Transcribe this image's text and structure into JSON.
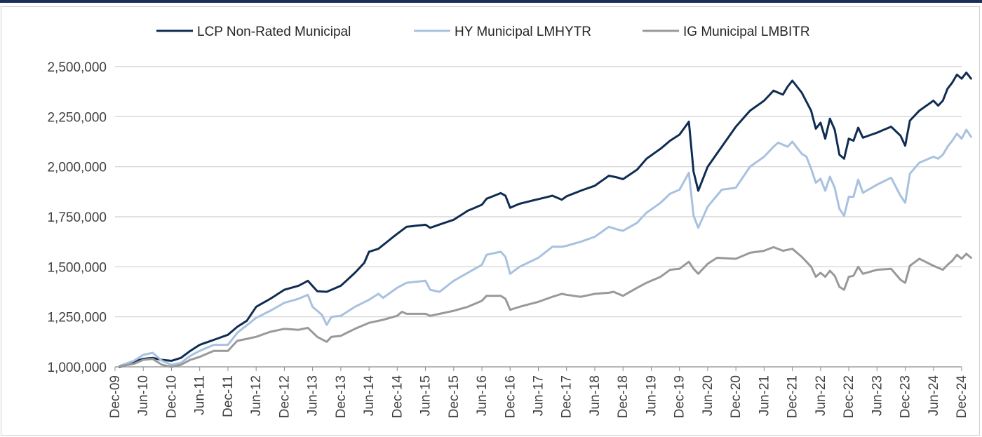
{
  "chart_data": {
    "type": "line",
    "title": "",
    "xlabel": "",
    "ylabel": "",
    "ylim": [
      1000000,
      2500000
    ],
    "y_ticks": [
      1000000,
      1250000,
      1500000,
      1750000,
      2000000,
      2250000,
      2500000
    ],
    "y_tick_labels": [
      "1,000,000",
      "1,250,000",
      "1,500,000",
      "1,750,000",
      "2,000,000",
      "2,250,000",
      "2,500,000"
    ],
    "x_tick_labels": [
      "Dec-09",
      "Jun-10",
      "Dec-10",
      "Jun-11",
      "Dec-11",
      "Jun-12",
      "Dec-12",
      "Jun-13",
      "Dec-13",
      "Jun-14",
      "Dec-14",
      "Jun-15",
      "Dec-15",
      "Jun-16",
      "Dec-16",
      "Jun-17",
      "Dec-17",
      "Jun-18",
      "Dec-18",
      "Jun-19",
      "Dec-19",
      "Jun-20",
      "Dec-20",
      "Jun-21",
      "Dec-21",
      "Jun-22",
      "Dec-22",
      "Jun-23",
      "Dec-23",
      "Jun-24",
      "Dec-24"
    ],
    "x_start": "Jan-10",
    "x_end": "Dec-24",
    "legend_position": "top",
    "grid": "horizontal",
    "series": [
      {
        "name": "LCP Non-Rated Municipal",
        "color": "#0f2d52",
        "anchors": [
          [
            "Jan-10",
            1000000
          ],
          [
            "Apr-10",
            1025000
          ],
          [
            "Jun-10",
            1040000
          ],
          [
            "Aug-10",
            1045000
          ],
          [
            "Oct-10",
            1035000
          ],
          [
            "Dec-10",
            1030000
          ],
          [
            "Feb-11",
            1045000
          ],
          [
            "Apr-11",
            1080000
          ],
          [
            "Jun-11",
            1110000
          ],
          [
            "Dec-11",
            1160000
          ],
          [
            "Feb-12",
            1200000
          ],
          [
            "Apr-12",
            1230000
          ],
          [
            "Jun-12",
            1300000
          ],
          [
            "Sep-12",
            1340000
          ],
          [
            "Dec-12",
            1385000
          ],
          [
            "Mar-13",
            1405000
          ],
          [
            "May-13",
            1430000
          ],
          [
            "Jul-13",
            1378000
          ],
          [
            "Sep-13",
            1375000
          ],
          [
            "Dec-13",
            1405000
          ],
          [
            "Mar-14",
            1470000
          ],
          [
            "May-14",
            1520000
          ],
          [
            "Jun-14",
            1575000
          ],
          [
            "Aug-14",
            1590000
          ],
          [
            "Dec-14",
            1665000
          ],
          [
            "Feb-15",
            1700000
          ],
          [
            "Jun-15",
            1710000
          ],
          [
            "Jul-15",
            1695000
          ],
          [
            "Dec-15",
            1735000
          ],
          [
            "Mar-16",
            1780000
          ],
          [
            "Jun-16",
            1810000
          ],
          [
            "Jul-16",
            1840000
          ],
          [
            "Oct-16",
            1868000
          ],
          [
            "Nov-16",
            1855000
          ],
          [
            "Dec-16",
            1795000
          ],
          [
            "Feb-17",
            1815000
          ],
          [
            "Jun-17",
            1838000
          ],
          [
            "Sep-17",
            1855000
          ],
          [
            "Nov-17",
            1835000
          ],
          [
            "Dec-17",
            1852000
          ],
          [
            "Mar-18",
            1880000
          ],
          [
            "Jun-18",
            1905000
          ],
          [
            "Sep-18",
            1955000
          ],
          [
            "Nov-18",
            1945000
          ],
          [
            "Dec-18",
            1938000
          ],
          [
            "Mar-19",
            1985000
          ],
          [
            "May-19",
            2040000
          ],
          [
            "Aug-19",
            2090000
          ],
          [
            "Oct-19",
            2130000
          ],
          [
            "Dec-19",
            2160000
          ],
          [
            "Feb-20",
            2225000
          ],
          [
            "Mar-20",
            1975000
          ],
          [
            "Apr-20",
            1880000
          ],
          [
            "Jun-20",
            2000000
          ],
          [
            "Sep-20",
            2100000
          ],
          [
            "Dec-20",
            2200000
          ],
          [
            "Mar-21",
            2280000
          ],
          [
            "Jun-21",
            2330000
          ],
          [
            "Aug-21",
            2380000
          ],
          [
            "Oct-21",
            2360000
          ],
          [
            "Nov-21",
            2400000
          ],
          [
            "Dec-21",
            2430000
          ],
          [
            "Feb-22",
            2370000
          ],
          [
            "Apr-22",
            2280000
          ],
          [
            "May-22",
            2190000
          ],
          [
            "Jun-22",
            2220000
          ],
          [
            "Jul-22",
            2140000
          ],
          [
            "Aug-22",
            2240000
          ],
          [
            "Sep-22",
            2185000
          ],
          [
            "Oct-22",
            2060000
          ],
          [
            "Nov-22",
            2040000
          ],
          [
            "Dec-22",
            2140000
          ],
          [
            "Jan-23",
            2130000
          ],
          [
            "Feb-23",
            2195000
          ],
          [
            "Mar-23",
            2145000
          ],
          [
            "Jun-23",
            2170000
          ],
          [
            "Sep-23",
            2200000
          ],
          [
            "Nov-23",
            2155000
          ],
          [
            "Dec-23",
            2105000
          ],
          [
            "Jan-24",
            2230000
          ],
          [
            "Mar-24",
            2280000
          ],
          [
            "Jun-24",
            2330000
          ],
          [
            "Jul-24",
            2305000
          ],
          [
            "Aug-24",
            2330000
          ],
          [
            "Sep-24",
            2390000
          ],
          [
            "Oct-24",
            2420000
          ],
          [
            "Nov-24",
            2460000
          ],
          [
            "Dec-24",
            2440000
          ],
          [
            "Jan-25",
            2470000
          ],
          [
            "Feb-25",
            2440000
          ]
        ]
      },
      {
        "name": "HY Municipal LMHYTR",
        "color": "#a8c1e0",
        "anchors": [
          [
            "Jan-10",
            1005000
          ],
          [
            "Apr-10",
            1030000
          ],
          [
            "Jun-10",
            1060000
          ],
          [
            "Aug-10",
            1070000
          ],
          [
            "Oct-10",
            1030000
          ],
          [
            "Dec-10",
            1010000
          ],
          [
            "Feb-11",
            1020000
          ],
          [
            "Apr-11",
            1055000
          ],
          [
            "Jun-11",
            1080000
          ],
          [
            "Sep-11",
            1110000
          ],
          [
            "Dec-11",
            1110000
          ],
          [
            "Feb-12",
            1170000
          ],
          [
            "Jun-12",
            1245000
          ],
          [
            "Sep-12",
            1280000
          ],
          [
            "Dec-12",
            1320000
          ],
          [
            "Mar-13",
            1340000
          ],
          [
            "May-13",
            1360000
          ],
          [
            "Jun-13",
            1300000
          ],
          [
            "Aug-13",
            1260000
          ],
          [
            "Sep-13",
            1210000
          ],
          [
            "Oct-13",
            1250000
          ],
          [
            "Dec-13",
            1255000
          ],
          [
            "Mar-14",
            1300000
          ],
          [
            "Jun-14",
            1335000
          ],
          [
            "Aug-14",
            1365000
          ],
          [
            "Sep-14",
            1345000
          ],
          [
            "Dec-14",
            1395000
          ],
          [
            "Feb-15",
            1420000
          ],
          [
            "Jun-15",
            1430000
          ],
          [
            "Jul-15",
            1385000
          ],
          [
            "Sep-15",
            1375000
          ],
          [
            "Dec-15",
            1430000
          ],
          [
            "Mar-16",
            1470000
          ],
          [
            "Jun-16",
            1510000
          ],
          [
            "Jul-16",
            1560000
          ],
          [
            "Oct-16",
            1575000
          ],
          [
            "Nov-16",
            1550000
          ],
          [
            "Dec-16",
            1465000
          ],
          [
            "Feb-17",
            1500000
          ],
          [
            "Jun-17",
            1545000
          ],
          [
            "Sep-17",
            1600000
          ],
          [
            "Nov-17",
            1600000
          ],
          [
            "Dec-17",
            1605000
          ],
          [
            "Mar-18",
            1625000
          ],
          [
            "Jun-18",
            1650000
          ],
          [
            "Sep-18",
            1700000
          ],
          [
            "Nov-18",
            1685000
          ],
          [
            "Dec-18",
            1680000
          ],
          [
            "Mar-19",
            1720000
          ],
          [
            "May-19",
            1770000
          ],
          [
            "Aug-19",
            1820000
          ],
          [
            "Oct-19",
            1865000
          ],
          [
            "Dec-19",
            1885000
          ],
          [
            "Feb-20",
            1970000
          ],
          [
            "Mar-20",
            1755000
          ],
          [
            "Apr-20",
            1695000
          ],
          [
            "Jun-20",
            1800000
          ],
          [
            "Sep-20",
            1885000
          ],
          [
            "Dec-20",
            1895000
          ],
          [
            "Mar-21",
            2000000
          ],
          [
            "Jun-21",
            2050000
          ],
          [
            "Aug-21",
            2100000
          ],
          [
            "Sep-21",
            2120000
          ],
          [
            "Nov-21",
            2100000
          ],
          [
            "Dec-21",
            2125000
          ],
          [
            "Feb-22",
            2065000
          ],
          [
            "Mar-22",
            2050000
          ],
          [
            "Apr-22",
            1990000
          ],
          [
            "May-22",
            1920000
          ],
          [
            "Jun-22",
            1940000
          ],
          [
            "Jul-22",
            1880000
          ],
          [
            "Aug-22",
            1950000
          ],
          [
            "Sep-22",
            1895000
          ],
          [
            "Oct-22",
            1790000
          ],
          [
            "Nov-22",
            1755000
          ],
          [
            "Dec-22",
            1850000
          ],
          [
            "Jan-23",
            1850000
          ],
          [
            "Feb-23",
            1935000
          ],
          [
            "Mar-23",
            1870000
          ],
          [
            "Jun-23",
            1910000
          ],
          [
            "Sep-23",
            1945000
          ],
          [
            "Nov-23",
            1855000
          ],
          [
            "Dec-23",
            1820000
          ],
          [
            "Jan-24",
            1965000
          ],
          [
            "Mar-24",
            2020000
          ],
          [
            "Jun-24",
            2050000
          ],
          [
            "Jul-24",
            2040000
          ],
          [
            "Aug-24",
            2060000
          ],
          [
            "Sep-24",
            2100000
          ],
          [
            "Oct-24",
            2130000
          ],
          [
            "Nov-24",
            2165000
          ],
          [
            "Dec-24",
            2140000
          ],
          [
            "Jan-25",
            2185000
          ],
          [
            "Feb-25",
            2150000
          ]
        ]
      },
      {
        "name": "IG Municipal LMBITR",
        "color": "#999999",
        "anchors": [
          [
            "Jan-10",
            1003000
          ],
          [
            "Apr-10",
            1015000
          ],
          [
            "Jun-10",
            1035000
          ],
          [
            "Aug-10",
            1040000
          ],
          [
            "Oct-10",
            1010000
          ],
          [
            "Dec-10",
            1000000
          ],
          [
            "Feb-11",
            1010000
          ],
          [
            "Apr-11",
            1035000
          ],
          [
            "Jun-11",
            1050000
          ],
          [
            "Sep-11",
            1080000
          ],
          [
            "Dec-11",
            1080000
          ],
          [
            "Feb-12",
            1130000
          ],
          [
            "Jun-12",
            1150000
          ],
          [
            "Sep-12",
            1175000
          ],
          [
            "Dec-12",
            1190000
          ],
          [
            "Mar-13",
            1185000
          ],
          [
            "May-13",
            1195000
          ],
          [
            "Jul-13",
            1150000
          ],
          [
            "Sep-13",
            1125000
          ],
          [
            "Oct-13",
            1150000
          ],
          [
            "Dec-13",
            1155000
          ],
          [
            "Mar-14",
            1190000
          ],
          [
            "Jun-14",
            1220000
          ],
          [
            "Sep-14",
            1235000
          ],
          [
            "Dec-14",
            1255000
          ],
          [
            "Jan-15",
            1275000
          ],
          [
            "Feb-15",
            1265000
          ],
          [
            "Jun-15",
            1265000
          ],
          [
            "Jul-15",
            1255000
          ],
          [
            "Dec-15",
            1280000
          ],
          [
            "Mar-16",
            1300000
          ],
          [
            "Jun-16",
            1330000
          ],
          [
            "Jul-16",
            1355000
          ],
          [
            "Oct-16",
            1355000
          ],
          [
            "Nov-16",
            1340000
          ],
          [
            "Dec-16",
            1285000
          ],
          [
            "Feb-17",
            1300000
          ],
          [
            "Jun-17",
            1325000
          ],
          [
            "Sep-17",
            1350000
          ],
          [
            "Nov-17",
            1365000
          ],
          [
            "Dec-17",
            1360000
          ],
          [
            "Mar-18",
            1350000
          ],
          [
            "Jun-18",
            1365000
          ],
          [
            "Sep-18",
            1370000
          ],
          [
            "Oct-18",
            1375000
          ],
          [
            "Dec-18",
            1355000
          ],
          [
            "Mar-19",
            1395000
          ],
          [
            "May-19",
            1420000
          ],
          [
            "Aug-19",
            1450000
          ],
          [
            "Oct-19",
            1485000
          ],
          [
            "Dec-19",
            1490000
          ],
          [
            "Feb-20",
            1525000
          ],
          [
            "Mar-20",
            1490000
          ],
          [
            "Apr-20",
            1465000
          ],
          [
            "Jun-20",
            1515000
          ],
          [
            "Aug-20",
            1545000
          ],
          [
            "Dec-20",
            1540000
          ],
          [
            "Mar-21",
            1570000
          ],
          [
            "Jun-21",
            1580000
          ],
          [
            "Aug-21",
            1598000
          ],
          [
            "Oct-21",
            1580000
          ],
          [
            "Dec-21",
            1590000
          ],
          [
            "Feb-22",
            1550000
          ],
          [
            "Apr-22",
            1500000
          ],
          [
            "May-22",
            1450000
          ],
          [
            "Jun-22",
            1470000
          ],
          [
            "Jul-22",
            1450000
          ],
          [
            "Aug-22",
            1480000
          ],
          [
            "Sep-22",
            1455000
          ],
          [
            "Oct-22",
            1400000
          ],
          [
            "Nov-22",
            1385000
          ],
          [
            "Dec-22",
            1450000
          ],
          [
            "Jan-23",
            1455000
          ],
          [
            "Feb-23",
            1500000
          ],
          [
            "Mar-23",
            1465000
          ],
          [
            "Jun-23",
            1485000
          ],
          [
            "Sep-23",
            1490000
          ],
          [
            "Nov-23",
            1435000
          ],
          [
            "Dec-23",
            1420000
          ],
          [
            "Jan-24",
            1505000
          ],
          [
            "Mar-24",
            1540000
          ],
          [
            "Jun-24",
            1505000
          ],
          [
            "Jul-24",
            1495000
          ],
          [
            "Aug-24",
            1485000
          ],
          [
            "Sep-24",
            1510000
          ],
          [
            "Oct-24",
            1530000
          ],
          [
            "Nov-24",
            1560000
          ],
          [
            "Dec-24",
            1540000
          ],
          [
            "Jan-25",
            1565000
          ],
          [
            "Feb-25",
            1545000
          ]
        ]
      }
    ]
  }
}
